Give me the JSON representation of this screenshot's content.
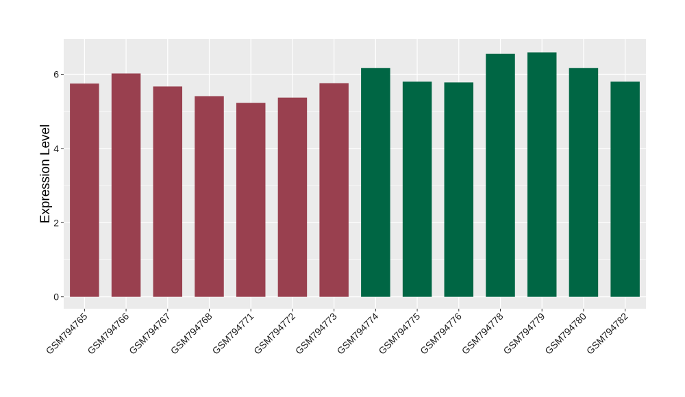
{
  "chart_data": {
    "type": "bar",
    "title": "",
    "xlabel": "",
    "ylabel": "Expression Level",
    "ylim": [
      -0.32,
      6.95
    ],
    "y_ticks": [
      0,
      2,
      4,
      6
    ],
    "grid": true,
    "categories": [
      "GSM794765",
      "GSM794766",
      "GSM794767",
      "GSM794768",
      "GSM794771",
      "GSM794772",
      "GSM794773",
      "GSM794774",
      "GSM794775",
      "GSM794776",
      "GSM794778",
      "GSM794779",
      "GSM794780",
      "GSM794782"
    ],
    "values": [
      5.75,
      6.02,
      5.67,
      5.41,
      5.23,
      5.37,
      5.76,
      6.17,
      5.8,
      5.78,
      6.55,
      6.59,
      6.17,
      5.8
    ],
    "groups": [
      "a",
      "a",
      "a",
      "a",
      "a",
      "a",
      "a",
      "b",
      "b",
      "b",
      "b",
      "b",
      "b",
      "b"
    ],
    "colors": {
      "a": "#99404f",
      "b": "#006644"
    },
    "panel_background": "#ebebeb",
    "grid_color": "#ffffff"
  }
}
